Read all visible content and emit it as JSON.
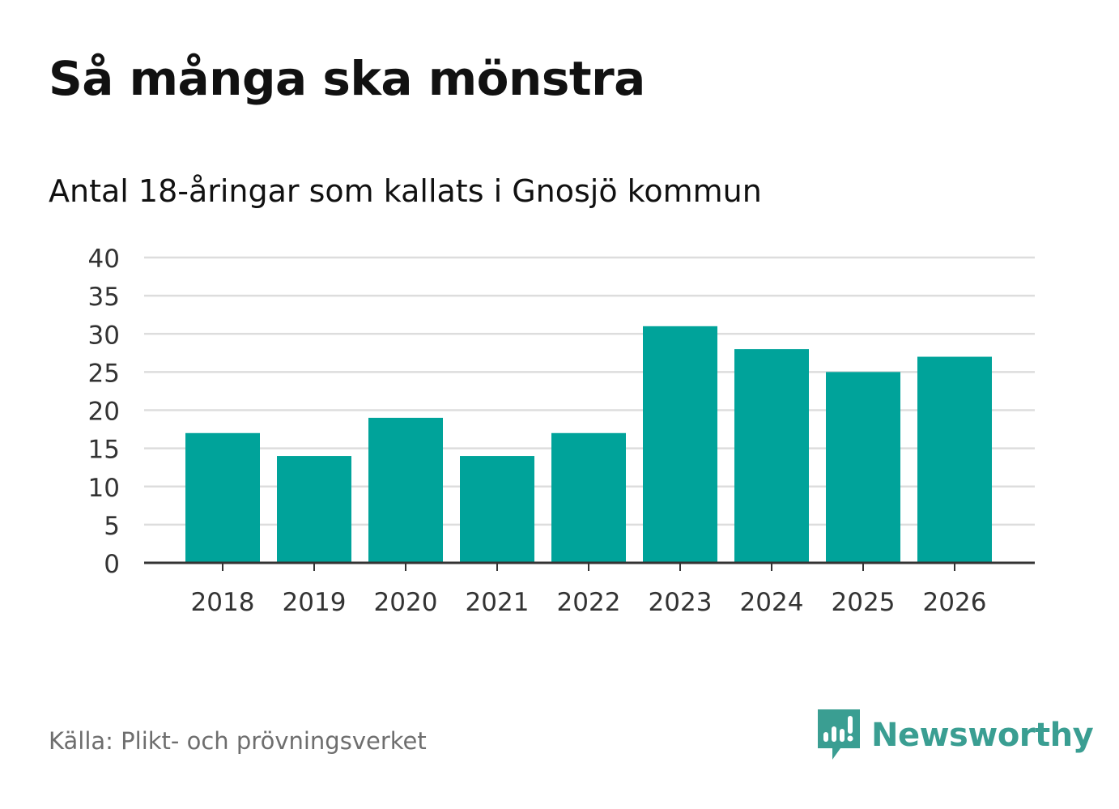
{
  "header": {
    "title": "Så många ska mönstra",
    "subtitle": "Antal 18-åringar som kallats i Gnosjö kommun"
  },
  "footer": {
    "source": "Källa: Plikt- och prövningsverket",
    "brand": "Newsworthy",
    "brand_color": "#3a9e92",
    "logo_icon": "newsworthy-logo-icon"
  },
  "chart_data": {
    "type": "bar",
    "title": "Så många ska mönstra",
    "subtitle": "Antal 18-åringar som kallats i Gnosjö kommun",
    "categories": [
      "2018",
      "2019",
      "2020",
      "2021",
      "2022",
      "2023",
      "2024",
      "2025",
      "2026"
    ],
    "values": [
      17,
      14,
      19,
      14,
      17,
      31,
      28,
      25,
      27
    ],
    "xlabel": "",
    "ylabel": "",
    "ylim": [
      0,
      40
    ],
    "yticks": [
      0,
      5,
      10,
      15,
      20,
      25,
      30,
      35,
      40
    ],
    "grid": true,
    "legend": "none",
    "bar_color": "#00a39a",
    "grid_color": "#dddddd",
    "axis_color": "#333333"
  }
}
